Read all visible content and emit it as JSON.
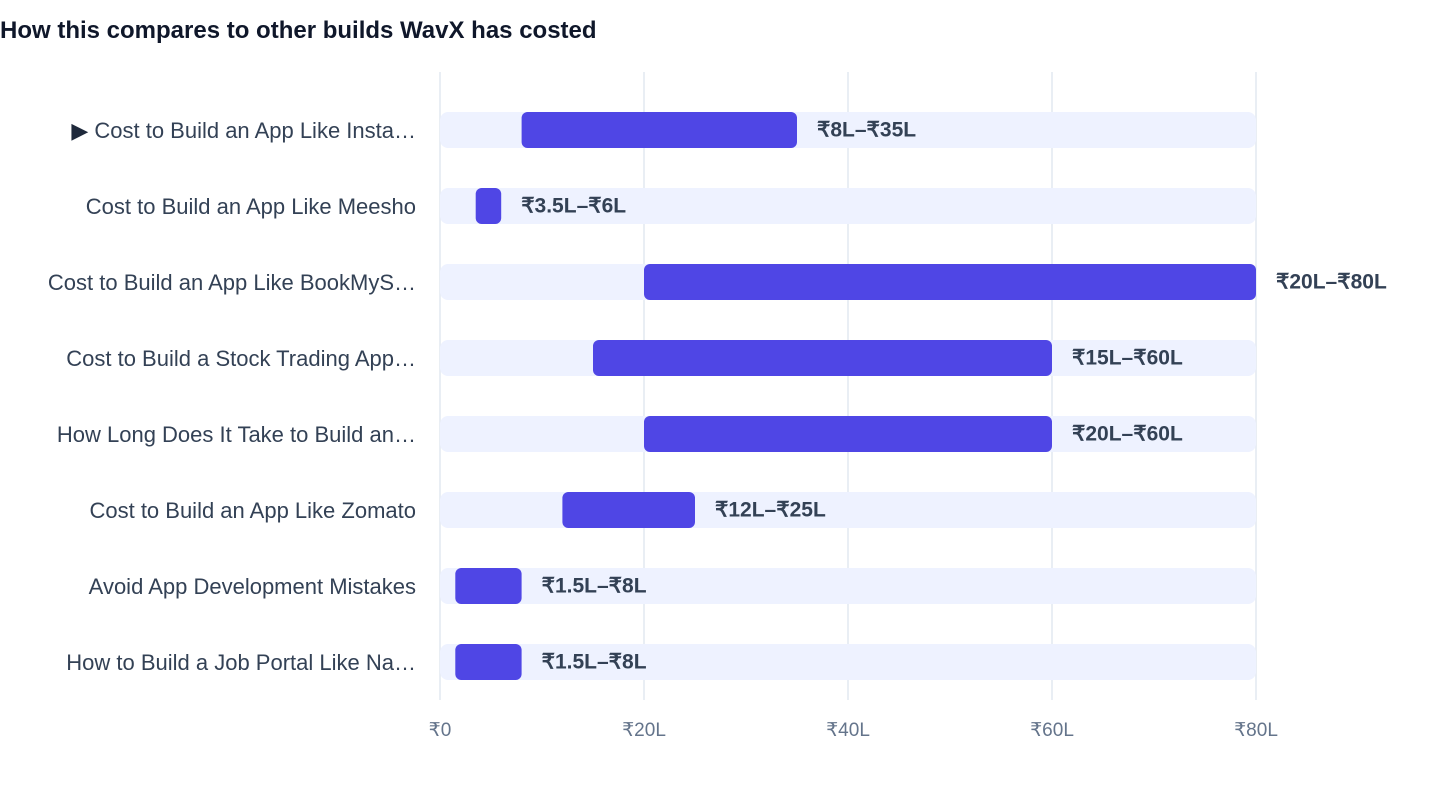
{
  "chart_data": {
    "type": "bar",
    "orientation": "horizontal",
    "subtype": "range",
    "title": "How this compares to other builds WavX has costed",
    "categories": [
      "Cost to Build an App Like Insta…",
      "Cost to Build an App Like Meesho",
      "Cost to Build an App Like BookMyS…",
      "Cost to Build a Stock Trading App…",
      "How Long Does It Take to Build an…",
      "Cost to Build an App Like Zomato",
      "Avoid App Development Mistakes",
      "How to Build a Job Portal Like Na…"
    ],
    "ranges": [
      {
        "low": 8,
        "high": 35,
        "label": "₹8L–₹35L",
        "selected": true
      },
      {
        "low": 3.5,
        "high": 6,
        "label": "₹3.5L–₹6L",
        "selected": false
      },
      {
        "low": 20,
        "high": 80,
        "label": "₹20L–₹80L",
        "selected": false
      },
      {
        "low": 15,
        "high": 60,
        "label": "₹15L–₹60L",
        "selected": false
      },
      {
        "low": 20,
        "high": 60,
        "label": "₹20L–₹60L",
        "selected": false
      },
      {
        "low": 12,
        "high": 25,
        "label": "₹12L–₹25L",
        "selected": false
      },
      {
        "low": 1.5,
        "high": 8,
        "label": "₹1.5L–₹8L",
        "selected": false
      },
      {
        "low": 1.5,
        "high": 8,
        "label": "₹1.5L–₹8L",
        "selected": false
      }
    ],
    "xlim": [
      0,
      80
    ],
    "xticks": [
      {
        "value": 0,
        "label": "₹0"
      },
      {
        "value": 20,
        "label": "₹20L"
      },
      {
        "value": 40,
        "label": "₹40L"
      },
      {
        "value": 60,
        "label": "₹60L"
      },
      {
        "value": 80,
        "label": "₹80L"
      }
    ],
    "selected_marker": "▶",
    "grid": true,
    "legend": "none",
    "colors": {
      "bar": "#4f46e5",
      "track": "#eef2ff",
      "grid": "#e2e8f0",
      "label": "#334155",
      "tick": "#64748b",
      "title": "#0f172a"
    }
  }
}
